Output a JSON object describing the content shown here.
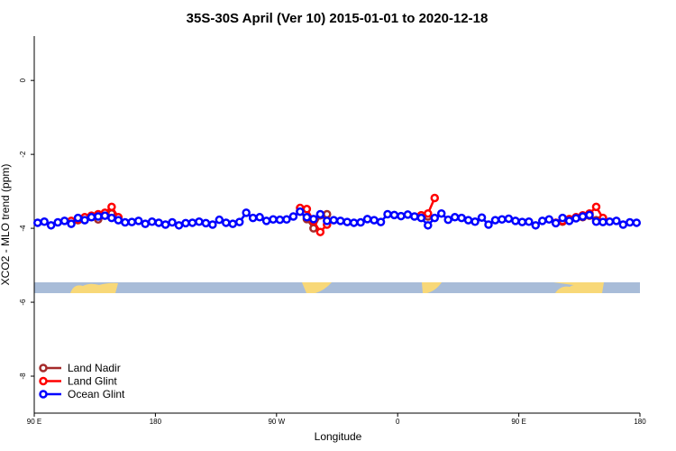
{
  "chart_data": {
    "type": "line",
    "title": "35S-30S April (Ver 10)   2015-01-01 to 2020-12-18",
    "xlabel": "Longitude",
    "ylabel": "XCO2 - MLO trend (ppm)",
    "xlim": [
      90,
      540
    ],
    "xticks": [
      {
        "value": 90,
        "label": "90 E"
      },
      {
        "value": 180,
        "label": "180"
      },
      {
        "value": 270,
        "label": "90 W"
      },
      {
        "value": 360,
        "label": "0"
      },
      {
        "value": 450,
        "label": "90 E"
      },
      {
        "value": 540,
        "label": "180"
      }
    ],
    "ylim": [
      -9,
      1.2
    ],
    "yticks": [
      0,
      -2,
      -4,
      -6,
      -8
    ],
    "legend": "bottom-left",
    "series": [
      {
        "name": "Land Nadir",
        "color": "#a52a2a",
        "x": [
          117.5,
          122.5,
          127.5,
          132.5,
          137.5,
          142.5,
          147.5,
          152.5,
          null,
          287.5,
          292.5,
          297.5,
          302.5,
          307.5,
          null,
          377.5,
          382.5,
          null,
          477.5,
          482.5,
          487.5,
          492.5,
          497.5,
          502.5,
          507.5,
          512.5
        ],
        "values": [
          -3.82,
          -3.78,
          -3.74,
          -3.7,
          -3.76,
          -3.64,
          -3.6,
          -3.72,
          null,
          -3.55,
          -3.75,
          -4.0,
          -3.65,
          -3.62,
          null,
          -3.65,
          -3.68,
          null,
          -3.85,
          -3.82,
          -3.78,
          -3.72,
          -3.7,
          -3.66,
          -3.78,
          -3.8
        ]
      },
      {
        "name": "Land Glint",
        "color": "#ff0000",
        "x": [
          117.5,
          122.5,
          127.5,
          132.5,
          137.5,
          142.5,
          147.5,
          152.5,
          null,
          287.5,
          292.5,
          297.5,
          302.5,
          307.5,
          null,
          377.5,
          382.5,
          387.5,
          null,
          477.5,
          482.5,
          487.5,
          492.5,
          497.5,
          502.5,
          507.5,
          512.5
        ],
        "values": [
          -3.8,
          -3.76,
          -3.7,
          -3.66,
          -3.62,
          -3.58,
          -3.42,
          -3.7,
          null,
          -3.45,
          -3.48,
          -3.8,
          -4.1,
          -3.9,
          null,
          -3.65,
          -3.6,
          -3.18,
          null,
          -3.85,
          -3.8,
          -3.75,
          -3.7,
          -3.65,
          -3.6,
          -3.42,
          -3.72
        ]
      },
      {
        "name": "Ocean Glint",
        "color": "#0000ff",
        "x": [
          92.5,
          97.5,
          102.5,
          107.5,
          112.5,
          117.5,
          122.5,
          127.5,
          132.5,
          137.5,
          142.5,
          147.5,
          152.5,
          157.5,
          162.5,
          167.5,
          172.5,
          177.5,
          182.5,
          187.5,
          192.5,
          197.5,
          202.5,
          207.5,
          212.5,
          217.5,
          222.5,
          227.5,
          232.5,
          237.5,
          242.5,
          247.5,
          252.5,
          257.5,
          262.5,
          267.5,
          272.5,
          277.5,
          282.5,
          287.5,
          292.5,
          297.5,
          302.5,
          307.5,
          312.5,
          317.5,
          322.5,
          327.5,
          332.5,
          337.5,
          342.5,
          347.5,
          352.5,
          357.5,
          362.5,
          367.5,
          372.5,
          377.5,
          382.5,
          387.5,
          392.5,
          397.5,
          402.5,
          407.5,
          412.5,
          417.5,
          422.5,
          427.5,
          432.5,
          437.5,
          442.5,
          447.5,
          452.5,
          457.5,
          462.5,
          467.5,
          472.5,
          477.5,
          482.5,
          487.5,
          492.5,
          497.5,
          502.5,
          507.5,
          512.5,
          517.5,
          522.5,
          527.5,
          532.5,
          537.5
        ],
        "values": [
          -3.85,
          -3.82,
          -3.92,
          -3.84,
          -3.8,
          -3.88,
          -3.72,
          -3.78,
          -3.7,
          -3.68,
          -3.66,
          -3.72,
          -3.78,
          -3.84,
          -3.83,
          -3.8,
          -3.88,
          -3.82,
          -3.85,
          -3.9,
          -3.84,
          -3.92,
          -3.86,
          -3.85,
          -3.82,
          -3.86,
          -3.9,
          -3.77,
          -3.85,
          -3.88,
          -3.83,
          -3.58,
          -3.72,
          -3.7,
          -3.8,
          -3.76,
          -3.77,
          -3.76,
          -3.68,
          -3.55,
          -3.7,
          -3.75,
          -3.62,
          -3.8,
          -3.78,
          -3.8,
          -3.83,
          -3.85,
          -3.84,
          -3.75,
          -3.78,
          -3.83,
          -3.62,
          -3.64,
          -3.67,
          -3.63,
          -3.68,
          -3.72,
          -3.92,
          -3.72,
          -3.6,
          -3.77,
          -3.7,
          -3.72,
          -3.78,
          -3.82,
          -3.71,
          -3.9,
          -3.78,
          -3.76,
          -3.74,
          -3.8,
          -3.83,
          -3.82,
          -3.92,
          -3.8,
          -3.76,
          -3.86,
          -3.72,
          -3.8,
          -3.73,
          -3.68,
          -3.64,
          -3.82,
          -3.83,
          -3.82,
          -3.8,
          -3.9,
          -3.84,
          -3.85
        ]
      }
    ]
  }
}
